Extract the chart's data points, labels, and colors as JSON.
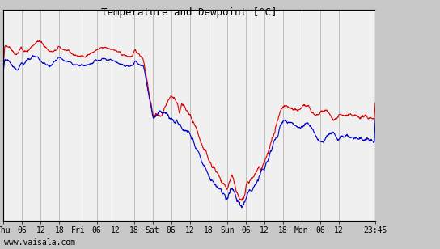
{
  "title": "Temperature and Dewpoint [°C]",
  "footer": "www.vaisala.com",
  "ylim": [
    -16,
    8
  ],
  "yticks": [
    -16,
    -14,
    -12,
    -10,
    -8,
    -6,
    -4,
    -2,
    0,
    2,
    4,
    6,
    8
  ],
  "bg_color": "#c8c8c8",
  "plot_bg_color": "#f0f0f0",
  "grid_color": "#aaaaaa",
  "temp_color": "#dd0000",
  "dew_color": "#0000cc",
  "line_width": 0.8,
  "x_tick_labels": [
    "Thu",
    "06",
    "12",
    "18",
    "Fri",
    "06",
    "12",
    "18",
    "Sat",
    "06",
    "12",
    "18",
    "Sun",
    "06",
    "12",
    "18",
    "Mon",
    "06",
    "12",
    "23:45"
  ],
  "x_tick_positions": [
    0,
    6,
    12,
    18,
    24,
    30,
    36,
    42,
    48,
    54,
    60,
    66,
    72,
    78,
    84,
    90,
    96,
    102,
    108,
    119.75
  ],
  "title_fontsize": 9,
  "tick_fontsize": 7
}
